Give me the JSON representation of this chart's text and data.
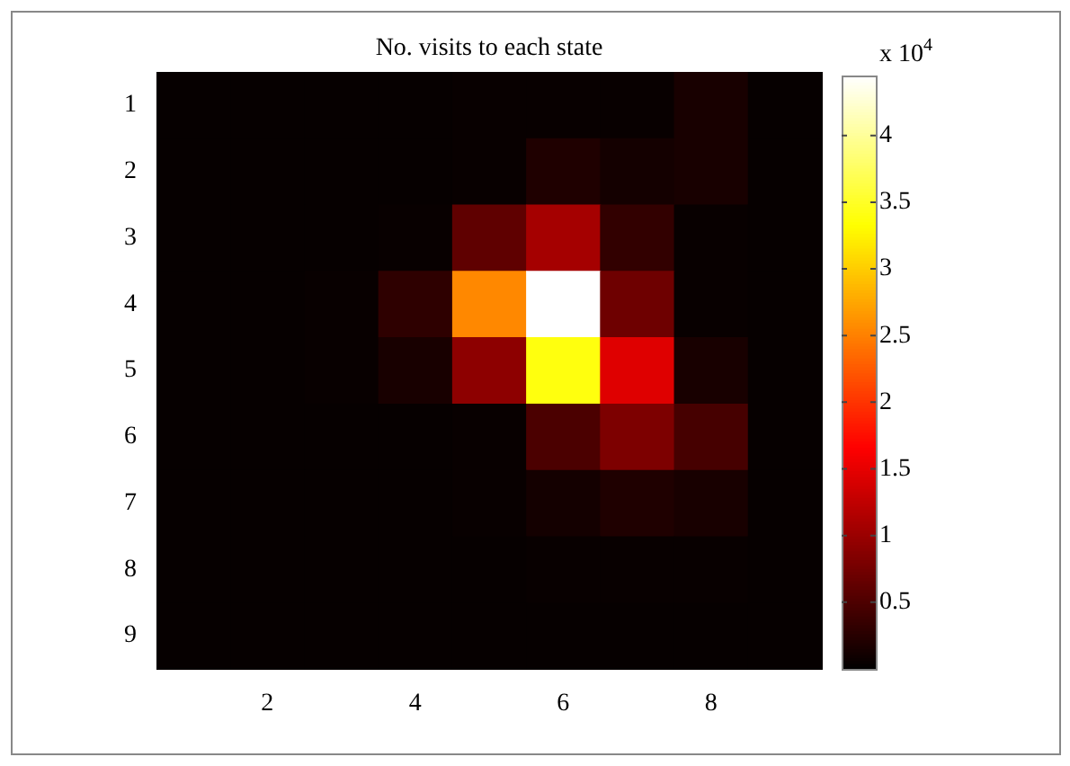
{
  "chart_data": {
    "type": "heatmap",
    "title": "No. visits to each state",
    "clabel": "x 10$^{4}$",
    "categories": [
      null,
      "2",
      null,
      "4",
      null,
      "6",
      null,
      "8",
      null
    ],
    "y_categories": [
      "1",
      "2",
      "3",
      "4",
      "5",
      "6",
      "7",
      "8",
      "9"
    ],
    "cells": [
      [
        0.04,
        0.04,
        0.04,
        0.04,
        0.05,
        0.05,
        0.05,
        0.16,
        0.04
      ],
      [
        0.04,
        0.04,
        0.04,
        0.04,
        0.05,
        0.2,
        0.13,
        0.16,
        0.04
      ],
      [
        0.04,
        0.04,
        0.04,
        0.05,
        0.62,
        1.08,
        0.33,
        0.05,
        0.04
      ],
      [
        0.04,
        0.04,
        0.05,
        0.3,
        2.56,
        4.45,
        0.72,
        0.05,
        0.04
      ],
      [
        0.04,
        0.04,
        0.05,
        0.16,
        0.92,
        3.4,
        1.46,
        0.16,
        0.04
      ],
      [
        0.04,
        0.04,
        0.04,
        0.04,
        0.05,
        0.49,
        0.82,
        0.46,
        0.04
      ],
      [
        0.04,
        0.04,
        0.04,
        0.04,
        0.05,
        0.13,
        0.2,
        0.16,
        0.04
      ],
      [
        0.04,
        0.04,
        0.04,
        0.04,
        0.04,
        0.05,
        0.05,
        0.05,
        0.04
      ],
      [
        0.04,
        0.04,
        0.04,
        0.04,
        0.04,
        0.04,
        0.04,
        0.04,
        0.04
      ]
    ],
    "clim": [
      0,
      4.45
    ],
    "cticks": [
      0.5,
      1,
      1.5,
      2,
      2.5,
      3,
      3.5,
      4
    ]
  }
}
